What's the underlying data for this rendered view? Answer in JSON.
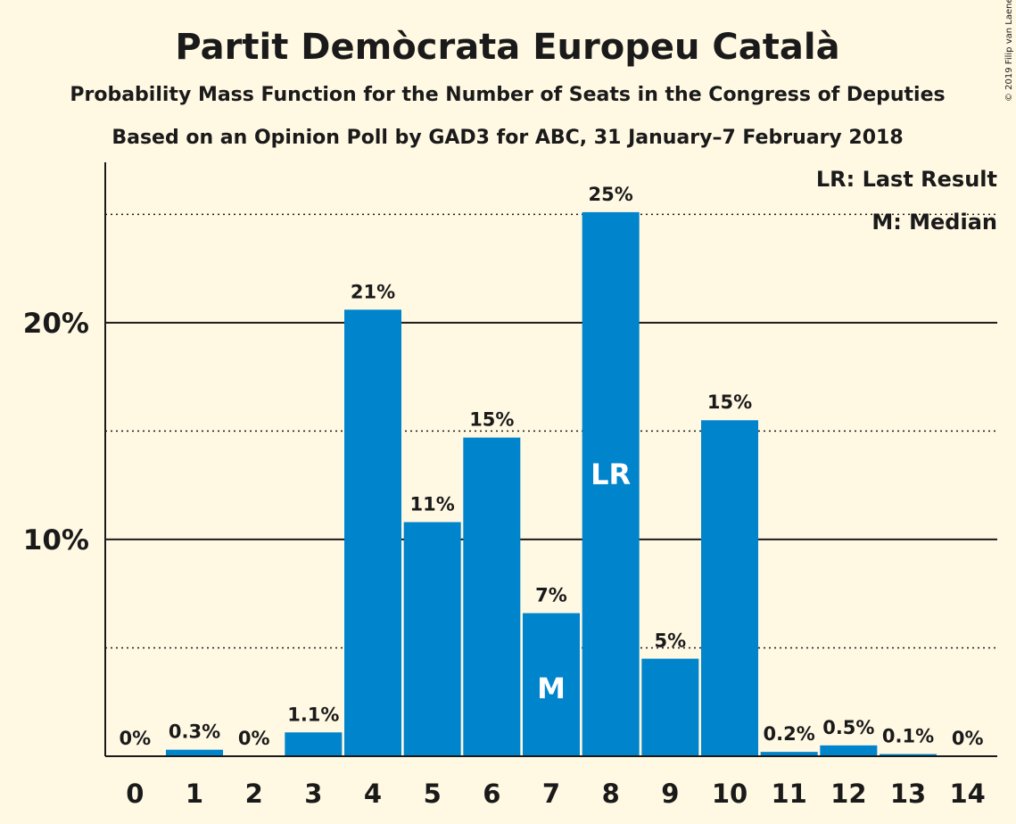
{
  "title": "Partit Demòcrata Europeu Català",
  "subtitle": "Probability Mass Function for the Number of Seats in the Congress of Deputies",
  "source": "Based on an Opinion Poll by GAD3 for ABC, 31 January–7 February 2018",
  "copyright": "© 2019 Filip van Laenen",
  "legend": {
    "lr": "LR: Last Result",
    "median": "M: Median"
  },
  "colors": {
    "bar": "#0084CC",
    "background": "#FFF8E3"
  },
  "chart_data": {
    "type": "bar",
    "categories": [
      "0",
      "1",
      "2",
      "3",
      "4",
      "5",
      "6",
      "7",
      "8",
      "9",
      "10",
      "11",
      "12",
      "13",
      "14"
    ],
    "values": [
      0,
      0.3,
      0,
      1.1,
      20.6,
      10.8,
      14.7,
      6.6,
      25.1,
      4.5,
      15.5,
      0.2,
      0.5,
      0.1,
      0
    ],
    "labels": [
      "0%",
      "0.3%",
      "0%",
      "1.1%",
      "21%",
      "11%",
      "15%",
      "7%",
      "25%",
      "5%",
      "15%",
      "0.2%",
      "0.5%",
      "0.1%",
      "0%"
    ],
    "ylim": [
      0,
      27.4
    ],
    "yticks": [
      {
        "value": 10,
        "label": "10%"
      },
      {
        "value": 20,
        "label": "20%"
      }
    ],
    "minor_gridlines": [
      5,
      15,
      25
    ],
    "markers": [
      {
        "category": "7",
        "text": "M"
      },
      {
        "category": "8",
        "text": "LR"
      }
    ],
    "grid": true,
    "legend_position": "top-right"
  }
}
